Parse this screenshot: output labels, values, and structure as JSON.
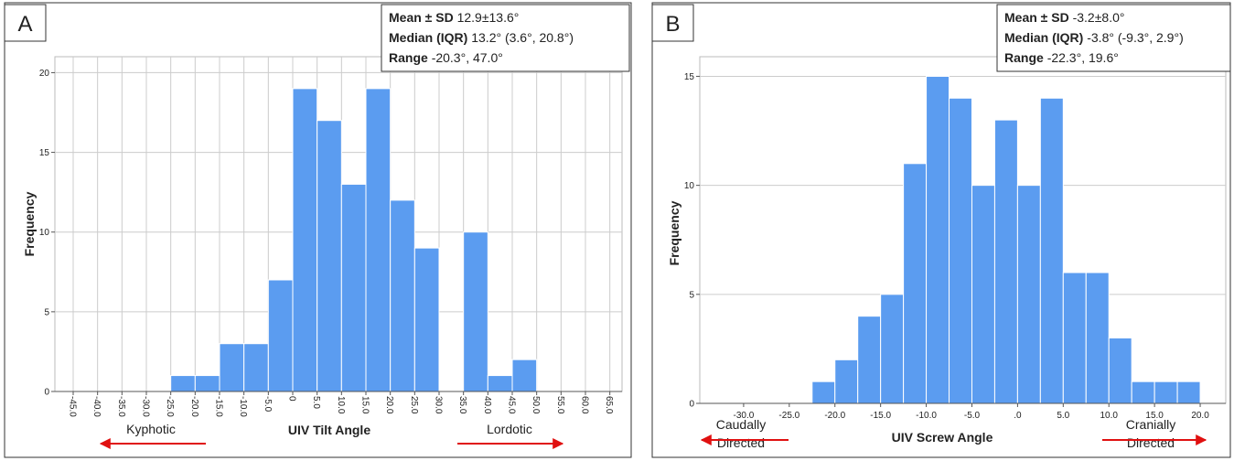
{
  "chart_data": [
    {
      "type": "histogram",
      "panel_label": "A",
      "stats": [
        {
          "label": "Mean ± SD",
          "value": "12.9±13.6°"
        },
        {
          "label": "Median (IQR)",
          "value": "13.2° (3.6°, 20.8°)"
        },
        {
          "label": "Range",
          "value": "-20.3°, 47.0°"
        }
      ],
      "xlabel": "UIV Tilt Angle",
      "ylabel": "Frequency",
      "bins": [
        -25,
        -20,
        -15,
        -10,
        -5,
        0,
        5,
        10,
        15,
        20,
        25,
        30,
        35,
        40,
        45,
        50
      ],
      "counts": [
        1,
        1,
        3,
        3,
        7,
        19,
        17,
        13,
        19,
        12,
        9,
        0,
        10,
        1,
        2
      ],
      "color": "#5b9cf0",
      "xlim": [
        -48.75,
        67.5
      ],
      "ylim": [
        0,
        21
      ],
      "xticks": [
        {
          "value": -45,
          "label": "-45.0"
        },
        {
          "value": -40,
          "label": "-40.0"
        },
        {
          "value": -35,
          "label": "-35.0"
        },
        {
          "value": -30,
          "label": "-30.0"
        },
        {
          "value": -25,
          "label": "-25.0"
        },
        {
          "value": -20,
          "label": "-20.0"
        },
        {
          "value": -15,
          "label": "-15.0"
        },
        {
          "value": -10,
          "label": "-10.0"
        },
        {
          "value": -5,
          "label": "-5.0"
        },
        0,
        {
          "value": 5,
          "label": "5.0"
        },
        {
          "value": 10,
          "label": "10.0"
        },
        {
          "value": 15,
          "label": "15.0"
        },
        {
          "value": 20,
          "label": "20.0"
        },
        {
          "value": 25,
          "label": "25.0"
        },
        {
          "value": 30,
          "label": "30.0"
        },
        {
          "value": 35,
          "label": "35.0"
        },
        {
          "value": 40,
          "label": "40.0"
        },
        {
          "value": 45,
          "label": "45.0"
        },
        {
          "value": 50,
          "label": "50.0"
        },
        {
          "value": 55,
          "label": "55.0"
        },
        {
          "value": 60,
          "label": "60.0"
        },
        {
          "value": 65,
          "label": "65.0"
        }
      ],
      "yticks": [
        0,
        5,
        10,
        15,
        20
      ],
      "xtick_rotation": 90,
      "grid": [
        "x",
        "y"
      ],
      "annotations": [
        {
          "text": [
            "Kyphotic"
          ],
          "direction": "left"
        },
        {
          "text": [
            "Lordotic"
          ],
          "direction": "right"
        }
      ]
    },
    {
      "type": "histogram",
      "panel_label": "B",
      "stats": [
        {
          "label": "Mean ± SD",
          "value": "-3.2±8.0°"
        },
        {
          "label": "Median (IQR)",
          "value": "-3.8° (-9.3°, 2.9°)"
        },
        {
          "label": "Range",
          "value": "-22.3°, 19.6°"
        }
      ],
      "xlabel": "UIV Screw Angle",
      "ylabel": "Frequency",
      "bins": [
        -22.5,
        -20,
        -17.5,
        -15,
        -12.5,
        -10,
        -7.5,
        -5,
        -2.5,
        0,
        2.5,
        5,
        7.5,
        10,
        12.5,
        15,
        17.5,
        20
      ],
      "counts": [
        1,
        2,
        4,
        5,
        11,
        15,
        14,
        10,
        13,
        10,
        14,
        6,
        6,
        3,
        1,
        1,
        1
      ],
      "color": "#5b9cf0",
      "xlim": [
        -34.8,
        22.8
      ],
      "ylim": [
        0,
        15.9
      ],
      "xticks": [
        {
          "value": -30,
          "label": "-30.0"
        },
        {
          "value": -25,
          "label": "-25.0"
        },
        {
          "value": -20,
          "label": "-20.0"
        },
        {
          "value": -15,
          "label": "-15.0"
        },
        {
          "value": -10,
          "label": "-10.0"
        },
        {
          "value": -5,
          "label": "-5.0"
        },
        {
          "value": 0,
          "label": ".0"
        },
        {
          "value": 5,
          "label": "5.0"
        },
        {
          "value": 10,
          "label": "10.0"
        },
        {
          "value": 15,
          "label": "15.0"
        },
        {
          "value": 20,
          "label": "20.0"
        }
      ],
      "yticks": [
        0,
        5,
        10,
        15
      ],
      "xtick_rotation": 0,
      "grid": [
        "y"
      ],
      "annotations": [
        {
          "text": [
            "Caudally",
            "Directed"
          ],
          "direction": "left"
        },
        {
          "text": [
            "Cranially",
            "Directed"
          ],
          "direction": "right"
        }
      ]
    }
  ]
}
